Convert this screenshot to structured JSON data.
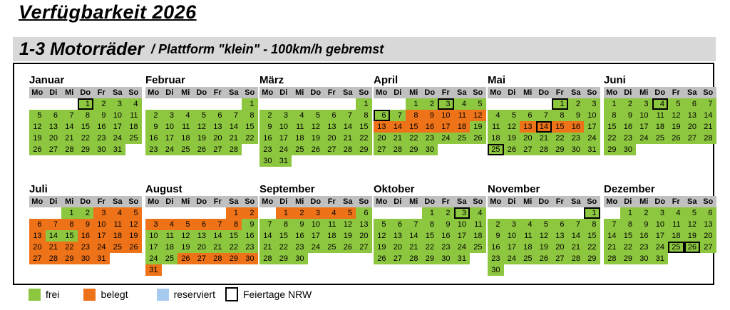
{
  "title": "Verfügbarkeit 2026",
  "subtitle": {
    "main": "1-3 Motorräder",
    "detail": "/ Plattform \"klein\" - 100km/h gebremst"
  },
  "weekdays": [
    "Mo",
    "Di",
    "Mi",
    "Do",
    "Fr",
    "Sa",
    "So"
  ],
  "colors": {
    "frei": "#8dc63f",
    "belegt": "#ee7218",
    "reserviert": "#a6cbee",
    "weekday_header_bg": "#c0c0c0",
    "subtitle_bar_bg": "#d8d8d8",
    "feiertag_border": "#000000"
  },
  "legend": [
    {
      "type": "frei",
      "label": "frei"
    },
    {
      "type": "belegt",
      "label": "belegt"
    },
    {
      "type": "reserviert",
      "label": "reserviert"
    },
    {
      "type": "feiertag",
      "label": "Feiertage NRW"
    }
  ],
  "months": [
    {
      "name": "Januar",
      "start": 3,
      "days": 31,
      "belegt": [],
      "feiertage": [
        1
      ]
    },
    {
      "name": "Februar",
      "start": 6,
      "days": 28,
      "belegt": [],
      "feiertage": []
    },
    {
      "name": "März",
      "start": 6,
      "days": 31,
      "belegt": [],
      "feiertage": []
    },
    {
      "name": "April",
      "start": 2,
      "days": 30,
      "belegt": [
        8,
        9,
        10,
        11,
        12,
        13,
        14,
        15,
        16,
        17,
        18
      ],
      "feiertage": [
        3,
        6
      ]
    },
    {
      "name": "Mai",
      "start": 4,
      "days": 31,
      "belegt": [
        13,
        14,
        15,
        16
      ],
      "feiertage": [
        1,
        14,
        25
      ]
    },
    {
      "name": "Juni",
      "start": 0,
      "days": 30,
      "belegt": [],
      "feiertage": [
        4
      ]
    },
    {
      "name": "Juli",
      "start": 2,
      "days": 31,
      "belegt": [
        3,
        4,
        5,
        6,
        7,
        8,
        9,
        10,
        11,
        12,
        13,
        16,
        17,
        18,
        19,
        20,
        21,
        22,
        23,
        24,
        25,
        26,
        27,
        28,
        29,
        30,
        31
      ],
      "feiertage": []
    },
    {
      "name": "August",
      "start": 5,
      "days": 31,
      "belegt": [
        1,
        2,
        3,
        4,
        5,
        6,
        7,
        8,
        26,
        27,
        28,
        29,
        30,
        31
      ],
      "feiertage": []
    },
    {
      "name": "September",
      "start": 1,
      "days": 30,
      "belegt": [
        1,
        2,
        3,
        4,
        5
      ],
      "feiertage": []
    },
    {
      "name": "Oktober",
      "start": 3,
      "days": 31,
      "belegt": [],
      "feiertage": [
        3
      ]
    },
    {
      "name": "November",
      "start": 6,
      "days": 30,
      "belegt": [],
      "feiertage": [
        1
      ]
    },
    {
      "name": "Dezember",
      "start": 1,
      "days": 31,
      "belegt": [],
      "feiertage": [
        25,
        26
      ]
    }
  ]
}
